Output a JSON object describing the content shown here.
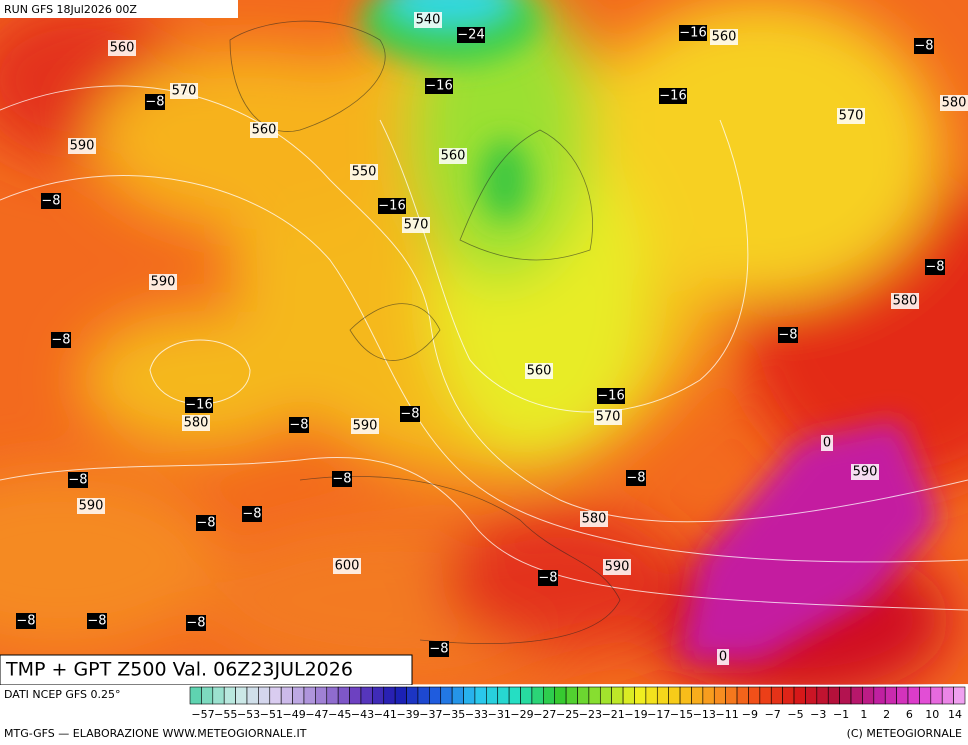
{
  "header": {
    "run": "RUN GFS 18Jul2026 00Z"
  },
  "title": "TMP + GPT Z500 Val. 06Z23JUL2026",
  "source": "DATI NCEP GFS 0.25°",
  "footer": {
    "left": "MTG-GFS — ELABORAZIONE WWW.METEOGIORNALE.IT",
    "right": "(C) METEOGIORNALE"
  },
  "colorbar": {
    "labels": [
      "−57",
      "−55",
      "−53",
      "−51",
      "−49",
      "−47",
      "−45",
      "−43",
      "−41",
      "−39",
      "−37",
      "−35",
      "−33",
      "−31",
      "−29",
      "−27",
      "−25",
      "−23",
      "−21",
      "−19",
      "−17",
      "−15",
      "−13",
      "−11",
      "−9",
      "−7",
      "−5",
      "−3",
      "−1",
      "1",
      "2",
      "6",
      "10",
      "14"
    ],
    "colors": [
      "#5fd3b0",
      "#c9ece6",
      "#d9ccf0",
      "#a78ad8",
      "#6b3fc0",
      "#1a1ab0",
      "#1f5fe0",
      "#2ac6f0",
      "#25e0c0",
      "#30c830",
      "#8ee030",
      "#f0f020",
      "#f8c818",
      "#f89020",
      "#f04818",
      "#d81818",
      "#b01040",
      "#c020a0",
      "#e040d0",
      "#f0a0f0"
    ]
  },
  "map": {
    "labels": [
      "540",
      "−24",
      "−16",
      "560",
      "560",
      "−8",
      "570",
      "−8",
      "−16",
      "−16",
      "580",
      "570",
      "560",
      "590",
      "560",
      "550",
      "−8",
      "−16",
      "570",
      "−8",
      "590",
      "580",
      "−8",
      "−8",
      "560",
      "−16",
      "−16",
      "−8",
      "570",
      "580",
      "−8",
      "590",
      "0",
      "590",
      "−8",
      "−8",
      "−8",
      "590",
      "−8",
      "−8",
      "580",
      "600",
      "590",
      "−8",
      "−8",
      "−8",
      "−8",
      "−8",
      "0"
    ]
  }
}
